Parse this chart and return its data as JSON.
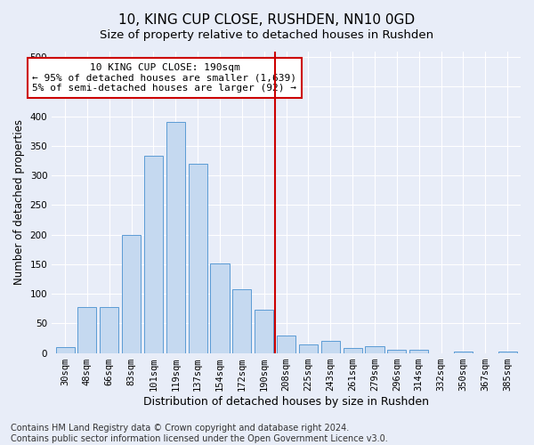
{
  "title": "10, KING CUP CLOSE, RUSHDEN, NN10 0GD",
  "subtitle": "Size of property relative to detached houses in Rushden",
  "xlabel": "Distribution of detached houses by size in Rushden",
  "ylabel": "Number of detached properties",
  "categories": [
    "30sqm",
    "48sqm",
    "66sqm",
    "83sqm",
    "101sqm",
    "119sqm",
    "137sqm",
    "154sqm",
    "172sqm",
    "190sqm",
    "208sqm",
    "225sqm",
    "243sqm",
    "261sqm",
    "279sqm",
    "296sqm",
    "314sqm",
    "332sqm",
    "350sqm",
    "367sqm",
    "385sqm"
  ],
  "values": [
    10,
    78,
    78,
    200,
    333,
    390,
    320,
    152,
    108,
    73,
    30,
    15,
    20,
    9,
    12,
    5,
    5,
    0,
    3,
    0,
    3
  ],
  "bar_color": "#c5d9f0",
  "bar_edge_color": "#5b9bd5",
  "vline_x_right_edge": 9.5,
  "vline_color": "#cc0000",
  "annotation_text": "10 KING CUP CLOSE: 190sqm\n← 95% of detached houses are smaller (1,639)\n5% of semi-detached houses are larger (92) →",
  "annotation_box_color": "#ffffff",
  "annotation_box_edge": "#cc0000",
  "ylim": [
    0,
    510
  ],
  "yticks": [
    0,
    50,
    100,
    150,
    200,
    250,
    300,
    350,
    400,
    450,
    500
  ],
  "bg_color": "#e8edf8",
  "grid_color": "#ffffff",
  "footer_line1": "Contains HM Land Registry data © Crown copyright and database right 2024.",
  "footer_line2": "Contains public sector information licensed under the Open Government Licence v3.0.",
  "title_fontsize": 11,
  "subtitle_fontsize": 9.5,
  "xlabel_fontsize": 9,
  "ylabel_fontsize": 8.5,
  "tick_fontsize": 7.5,
  "annotation_fontsize": 8,
  "footer_fontsize": 7
}
